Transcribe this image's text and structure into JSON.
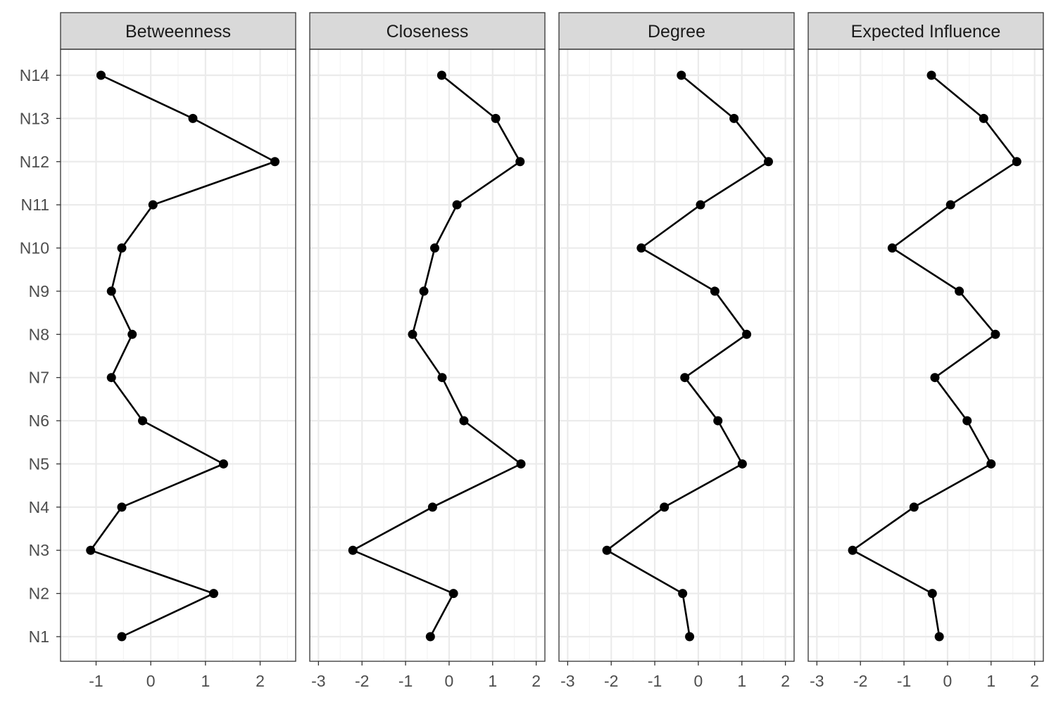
{
  "chart_data": {
    "type": "line",
    "layout": "faceted-horizontal",
    "grid": true,
    "categories": [
      "N1",
      "N2",
      "N3",
      "N4",
      "N5",
      "N6",
      "N7",
      "N8",
      "N9",
      "N10",
      "N11",
      "N12",
      "N13",
      "N14"
    ],
    "panels": [
      {
        "title": "Betweenness",
        "xlim": [
          -1.65,
          2.65
        ],
        "xticks": [
          -1,
          0,
          1,
          2
        ],
        "xtick_labels": [
          "-1",
          "0",
          "1",
          "2"
        ],
        "values": [
          -0.53,
          1.15,
          -1.1,
          -0.53,
          1.33,
          -0.15,
          -0.72,
          -0.34,
          -0.72,
          -0.53,
          0.04,
          2.27,
          0.77,
          -0.91
        ]
      },
      {
        "title": "Closeness",
        "xlim": [
          -3.2,
          2.2
        ],
        "xticks": [
          -3,
          -2,
          -1,
          0,
          1,
          2
        ],
        "xtick_labels": [
          "-3",
          "-2",
          "-1",
          "0",
          "1",
          "2"
        ],
        "values": [
          -0.43,
          0.1,
          -2.21,
          -0.38,
          1.65,
          0.34,
          -0.16,
          -0.84,
          -0.58,
          -0.33,
          0.18,
          1.63,
          1.07,
          -0.17
        ]
      },
      {
        "title": "Degree",
        "xlim": [
          -3.2,
          2.2
        ],
        "xticks": [
          -3,
          -2,
          -1,
          0,
          1,
          2
        ],
        "xtick_labels": [
          "-3",
          "-2",
          "-1",
          "0",
          "1",
          "2"
        ],
        "values": [
          -0.2,
          -0.36,
          -2.1,
          -0.78,
          1.01,
          0.45,
          -0.31,
          1.11,
          0.38,
          -1.31,
          0.05,
          1.61,
          0.82,
          -0.39
        ]
      },
      {
        "title": "Expected Influence",
        "xlim": [
          -3.2,
          2.2
        ],
        "xticks": [
          -3,
          -2,
          -1,
          0,
          1,
          2
        ],
        "xtick_labels": [
          "-3",
          "-2",
          "-1",
          "0",
          "1",
          "2"
        ],
        "values": [
          -0.19,
          -0.35,
          -2.18,
          -0.77,
          1.0,
          0.45,
          -0.29,
          1.1,
          0.27,
          -1.27,
          0.07,
          1.59,
          0.83,
          -0.37
        ]
      }
    ],
    "style": {
      "line_color": "#000000",
      "point_color": "#000000",
      "strip_fill": "#d9d9d9",
      "grid_color": "#ebebeb",
      "tick_label_color": "#4d4d4d"
    }
  }
}
